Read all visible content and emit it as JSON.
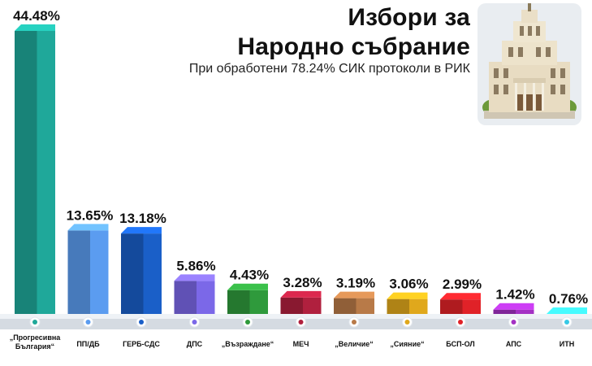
{
  "header": {
    "title_line1": "Избори за",
    "title_line2": "Народно събрание",
    "subtitle": "При обработени 78.24% СИК протоколи в РИК"
  },
  "chart_data": {
    "type": "bar",
    "title": "Избори за Народно събрание",
    "subtitle": "При обработени 78.24% СИК протоколи в РИК",
    "xlabel": "",
    "ylabel": "",
    "categories": [
      "„Прогресивна България“",
      "ПП/ДБ",
      "ГЕРБ-СДС",
      "ДПС",
      "„Възраждане“",
      "МЕЧ",
      "„Величие“",
      "„Сияние“",
      "БСП-ОЛ",
      "АПС",
      "ИТН"
    ],
    "values": [
      44.48,
      13.65,
      13.18,
      5.86,
      4.43,
      3.28,
      3.19,
      3.06,
      2.99,
      1.42,
      0.76
    ],
    "value_labels": [
      "44.48%",
      "13.65%",
      "13.18%",
      "5.86%",
      "4.43%",
      "3.28%",
      "3.19%",
      "3.06%",
      "2.99%",
      "1.42%",
      "0.76%"
    ],
    "colors": [
      "#1fa89a",
      "#5b9cf0",
      "#1a5fc8",
      "#7b68e8",
      "#2f9a3c",
      "#b0203e",
      "#b87a48",
      "#e0a81c",
      "#e02228",
      "#a431c4",
      "#38c9e6"
    ],
    "grid": false,
    "legend": "none"
  },
  "icons": [
    "parliament-building-icon"
  ]
}
